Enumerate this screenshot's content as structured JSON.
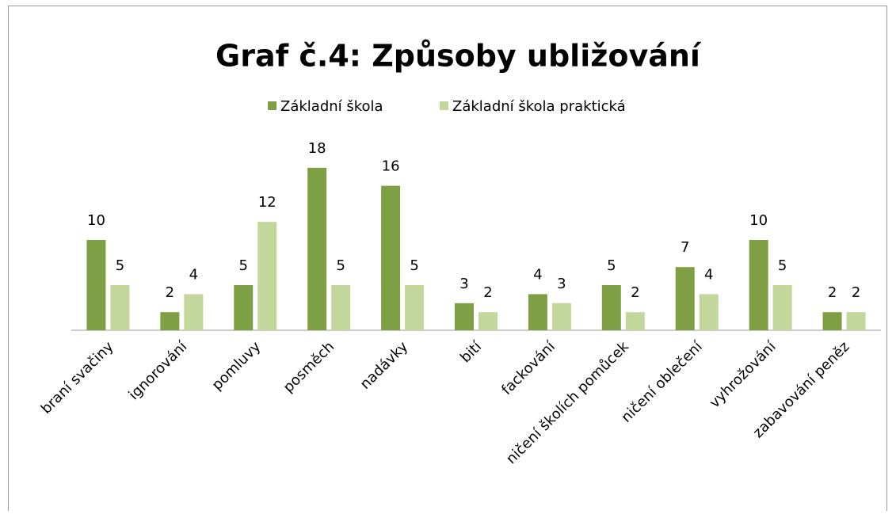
{
  "chart_data": {
    "type": "bar",
    "title": "Graf č.4: Způsoby ubližování",
    "categories": [
      "braní svačiny",
      "ignorování",
      "pomluvy",
      "posměch",
      "nadávky",
      "bití",
      "fackování",
      "ničení školích pomůcek",
      "ničení oblečení",
      "vyhrožování",
      "zabavování peněz"
    ],
    "series": [
      {
        "name": "Základní škola",
        "color": "#7f9f45",
        "values": [
          10,
          2,
          5,
          18,
          16,
          3,
          4,
          5,
          7,
          10,
          2
        ]
      },
      {
        "name": "Základní škola praktická",
        "color": "#c3d69b",
        "values": [
          5,
          4,
          12,
          5,
          5,
          2,
          3,
          2,
          4,
          5,
          2
        ]
      }
    ],
    "legend": "top"
  }
}
